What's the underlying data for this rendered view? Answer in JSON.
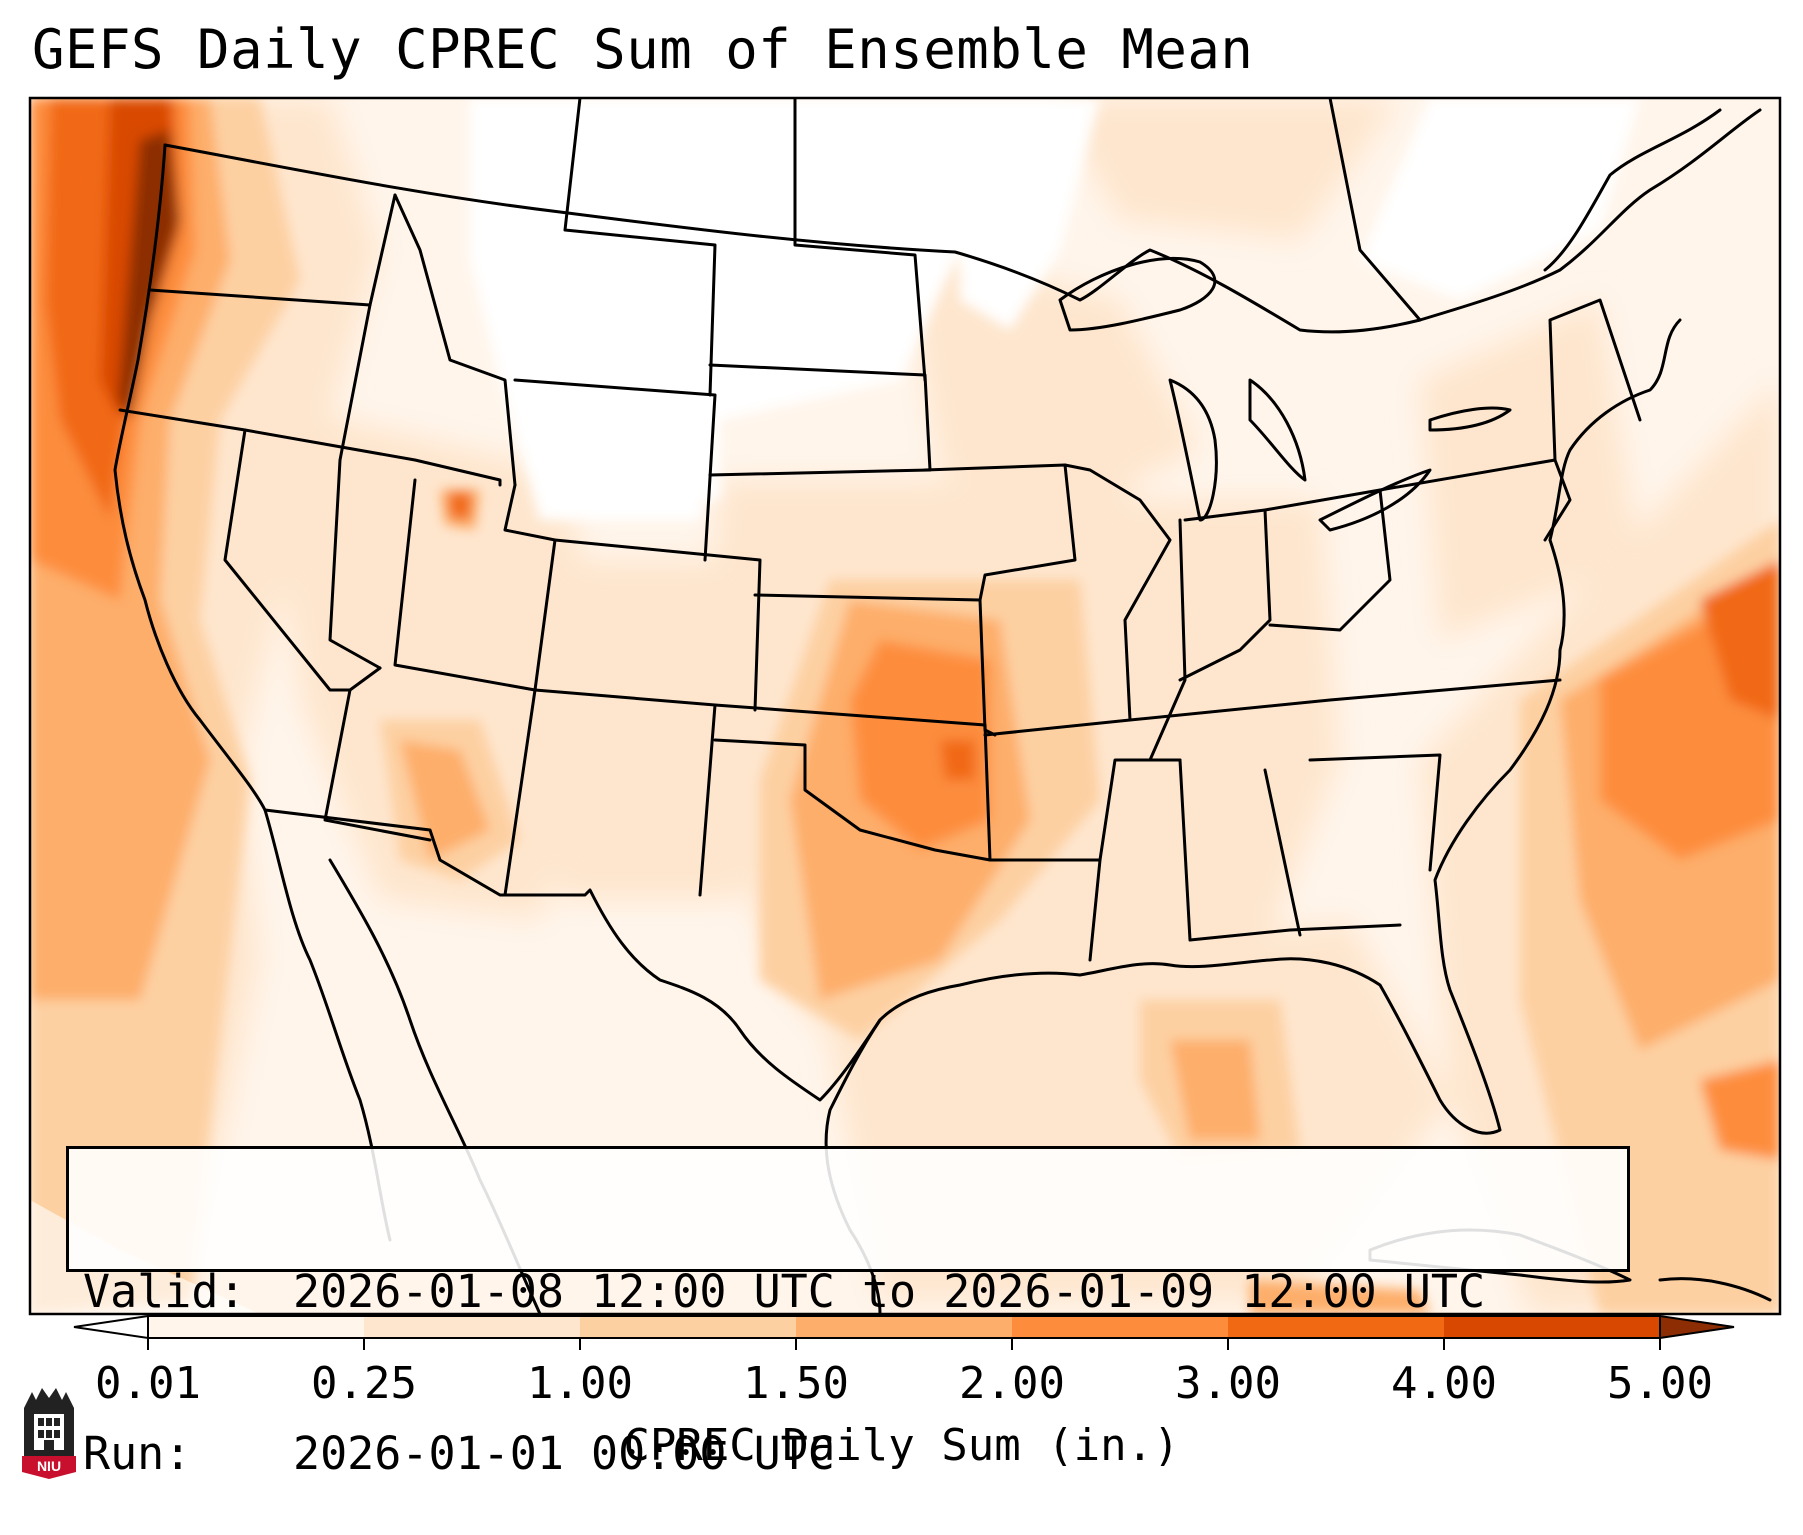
{
  "title": "GEFS Daily CPREC Sum of Ensemble Mean",
  "info": {
    "valid_key": "Valid:",
    "valid_value": "2026-01-08 12:00 UTC to 2026-01-09 12:00 UTC",
    "run_key": "Run:",
    "run_value": "2026-01-01 00:00 UTC"
  },
  "colorbar": {
    "label": "CPREC Daily Sum (in.)",
    "ticks": [
      "0.01",
      "0.25",
      "1.00",
      "1.50",
      "2.00",
      "3.00",
      "4.00",
      "5.00"
    ],
    "colors": [
      "#fff5eb",
      "#fee6ce",
      "#fdd0a2",
      "#fdae6b",
      "#fd8d3c",
      "#f16913",
      "#d94801",
      "#8c2d04"
    ],
    "extend": "both"
  },
  "logo": {
    "text": "NIU",
    "icon": "niu-tower-logo-icon"
  },
  "map": {
    "projection": "lambert-conformal-north-america",
    "fill_palette": "orange-sequential"
  }
}
